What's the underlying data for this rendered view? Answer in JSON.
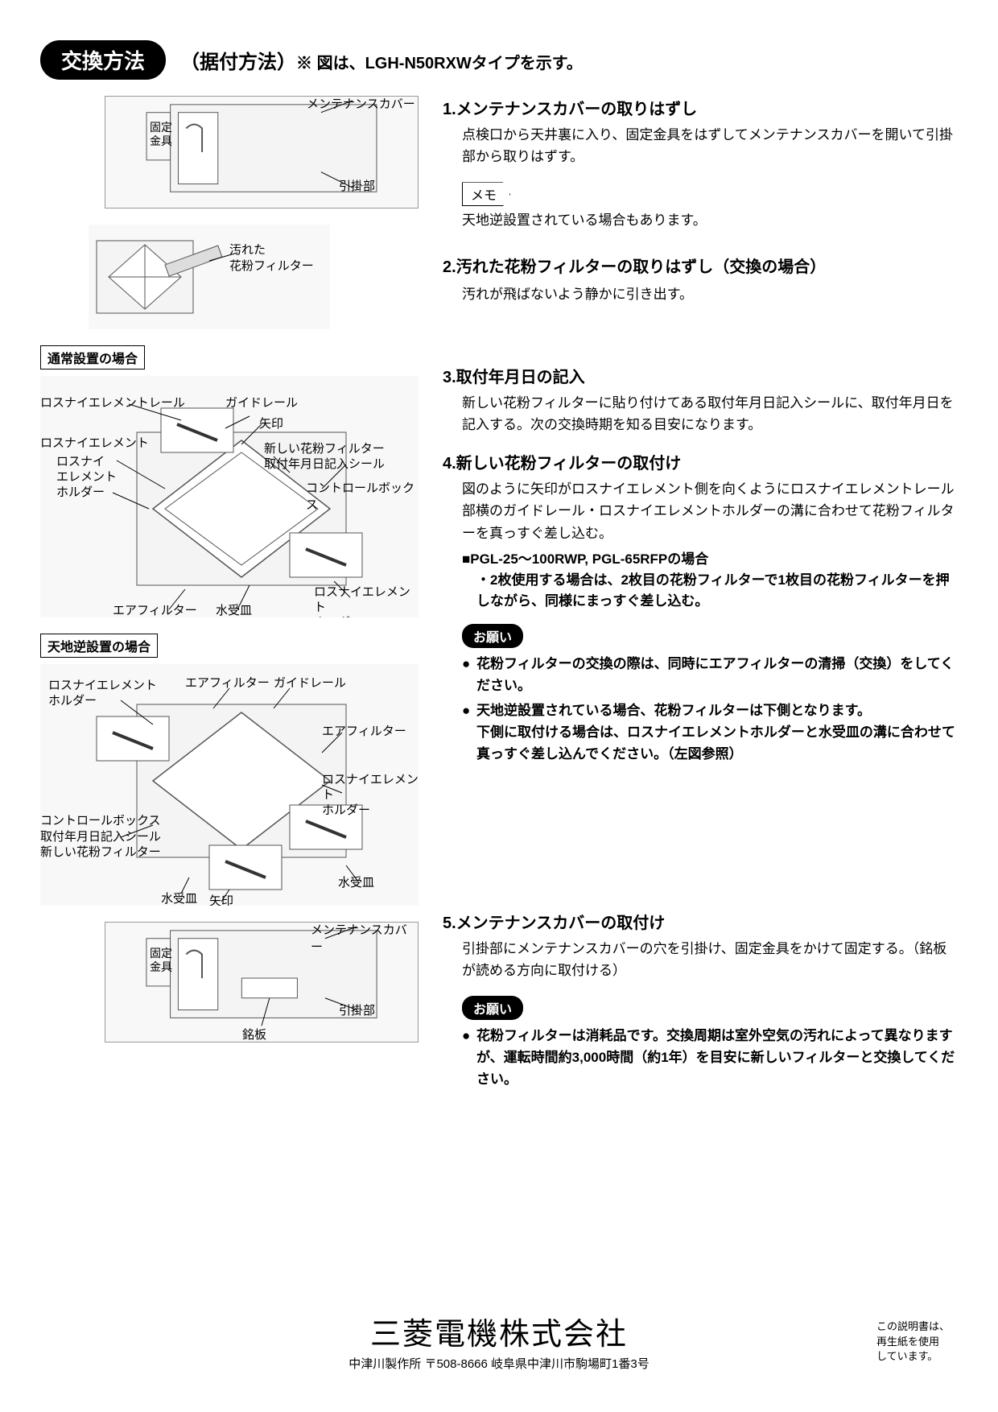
{
  "header": {
    "title": "交換方法",
    "subtitle_paren": "（据付方法）",
    "subtitle_note": "※ 図は、LGH-N50RXWタイプを示す。"
  },
  "diagrams": {
    "d1": {
      "labels": {
        "kotei": "固定\n金具",
        "cover": "メンテナンスカバー",
        "hook": "引掛部"
      }
    },
    "d2": {
      "labels": {
        "dirty": "汚れた\n花粉フィルター"
      }
    },
    "caseA_title": "通常設置の場合",
    "d3": {
      "labels": {
        "rail": "ロスナイエレメントレール",
        "guide": "ガイドレール",
        "element": "ロスナイエレメント",
        "arrow": "矢印",
        "holder_l": "ロスナイ\nエレメント\nホルダー",
        "newfilter": "新しい花粉フィルター\n取付年月日記入シール",
        "control": "コントロールボックス",
        "air": "エアフィルター",
        "drain": "水受皿",
        "holder_r": "ロスナイエレメント\nホルダー"
      }
    },
    "caseB_title": "天地逆設置の場合",
    "d4": {
      "labels": {
        "holder_tl": "ロスナイエレメント\nホルダー",
        "air_t": "エアフィルター",
        "guide": "ガイドレール",
        "air_r": "エアフィルター",
        "holder_r": "ロスナイエレメント\nホルダー",
        "control": "コントロールボックス\n取付年月日記入シール\n新しい花粉フィルター",
        "drain_l": "水受皿",
        "arrow": "矢印",
        "drain_r": "水受皿"
      }
    },
    "d5": {
      "labels": {
        "kotei": "固定\n金具",
        "cover": "メンテナンスカバー",
        "hook": "引掛部",
        "plate": "銘板"
      }
    }
  },
  "steps": {
    "s1": {
      "title": "1.メンテナンスカバーの取りはずし",
      "body": "点検口から天井裏に入り、固定金具をはずしてメンテナンスカバーを開いて引掛部から取りはずす。",
      "memo_label": "メモ",
      "memo_body": "天地逆設置されている場合もあります。"
    },
    "s2": {
      "title": "2.汚れた花粉フィルターの取りはずし（交換の場合）",
      "body": "汚れが飛ばないよう静かに引き出す。"
    },
    "s3": {
      "title": "3.取付年月日の記入",
      "body": "新しい花粉フィルターに貼り付けてある取付年月日記入シールに、取付年月日を記入する。次の交換時期を知る目安になります。"
    },
    "s4": {
      "title": "4.新しい花粉フィルターの取付け",
      "body": "図のように矢印がロスナイエレメント側を向くようにロスナイエレメントレール部横のガイドレール・ロスナイエレメントホルダーの溝に合わせて花粉フィルターを真っすぐ差し込む。",
      "sub_model": "■PGL-25～100RWP, PGL-65RFPの場合",
      "sub_bullet": "・2枚使用する場合は、2枚目の花粉フィルターで1枚目の花粉フィルターを押しながら、同様にまっすぐ差し込む。",
      "onegai_label": "お願い",
      "onegai_b1": "花粉フィルターの交換の際は、同時にエアフィルターの清掃（交換）をしてください。",
      "onegai_b2": "天地逆設置されている場合、花粉フィルターは下側となります。",
      "onegai_b2_sub": "下側に取付ける場合は、ロスナイエレメントホルダーと水受皿の溝に合わせて真っすぐ差し込んでください。（左図参照）"
    },
    "s5": {
      "title": "5.メンテナンスカバーの取付け",
      "body": "引掛部にメンテナンスカバーの穴を引掛け、固定金具をかけて固定する。（銘板が読める方向に取付ける）",
      "onegai_label": "お願い",
      "onegai_b1": "花粉フィルターは消耗品です。交換周期は室外空気の汚れによって異なりますが、運転時間約3,000時間（約1年）を目安に新しいフィルターと交換してください。"
    }
  },
  "footer": {
    "company": "三菱電機株式会社",
    "address": "中津川製作所 〒508-8666 岐阜県中津川市駒場町1番3号",
    "recycle": "この説明書は、\n再生紙を使用\nしています。"
  },
  "colors": {
    "text": "#000000",
    "bg": "#ffffff",
    "diagram_fill": "#f0f0f0",
    "diagram_line": "#555555"
  }
}
